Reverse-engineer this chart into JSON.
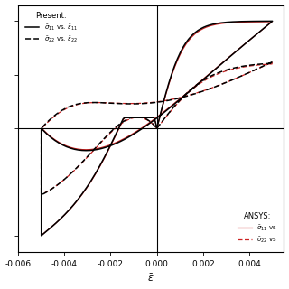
{
  "xlabel": "$\\bar{\\varepsilon}$",
  "legend_present_title": "Present:",
  "legend_ansys_title": "ANSYS:",
  "legend_solid_label": "$\\bar{\\sigma}_{11}$ vs. $\\bar{\\varepsilon}_{11}$",
  "legend_dashed_label": "$\\bar{\\sigma}_{22}$ vs. $\\bar{\\varepsilon}_{22}$",
  "legend_ansys_solid": "$\\bar{\\sigma}_{11}$ vs",
  "legend_ansys_dashed": "$\\bar{\\sigma}_{22}$ vs",
  "color_present": "black",
  "color_ansys": "#cc2222",
  "lw_present": 1.1,
  "lw_ansys": 0.9,
  "xlim": [
    -0.006,
    0.0055
  ],
  "ylim": [
    -1.15,
    1.15
  ],
  "xticks": [
    -0.006,
    -0.004,
    -0.002,
    0.0,
    0.002,
    0.004
  ],
  "yticks": [
    -1.0,
    -0.5,
    0.0,
    0.5,
    1.0
  ],
  "xticklabels": [
    "-0.006",
    "-0.004",
    "-0.002",
    "0.000",
    "0.002",
    "0.004"
  ],
  "background": "white"
}
